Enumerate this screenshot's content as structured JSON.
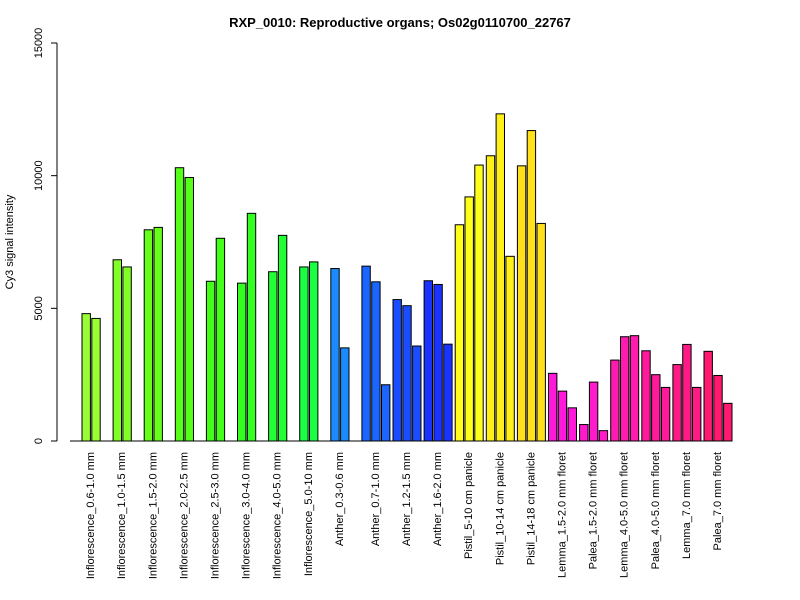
{
  "chart_data": {
    "type": "bar",
    "title": "RXP_0010: Reproductive organs; Os02g0110700_22767",
    "ylabel": "Cy3 signal intensity",
    "xlabel": "",
    "ylim": [
      0,
      15000
    ],
    "yticks": [
      0,
      5000,
      10000,
      15000
    ],
    "grid": false,
    "groups": [
      {
        "label": "Inflorescence_0.6-1.0 mm",
        "values": [
          4800,
          4620
        ],
        "colors": [
          "#99ff33",
          "#99ff33"
        ]
      },
      {
        "label": "Inflorescence_1.0-1.5 mm",
        "values": [
          6830,
          6560
        ],
        "colors": [
          "#80ff26",
          "#80ff26"
        ]
      },
      {
        "label": "Inflorescence_1.5-2.0 mm",
        "values": [
          7960,
          8050
        ],
        "colors": [
          "#66ff1a",
          "#66ff1a"
        ]
      },
      {
        "label": "Inflorescence_2.0-2.5 mm",
        "values": [
          10300,
          9930
        ],
        "colors": [
          "#55ff1a",
          "#55ff1a"
        ]
      },
      {
        "label": "Inflorescence_2.5-3.0 mm",
        "values": [
          6020,
          7640
        ],
        "colors": [
          "#44ff1a",
          "#44ff1a"
        ]
      },
      {
        "label": "Inflorescence_3.0-4.0 mm",
        "values": [
          5950,
          8580
        ],
        "colors": [
          "#33ff22",
          "#33ff22"
        ]
      },
      {
        "label": "Inflorescence_4.0-5.0 mm",
        "values": [
          6380,
          7750
        ],
        "colors": [
          "#22ff33",
          "#22ff33"
        ]
      },
      {
        "label": "Inflorescence_5.0-10 mm",
        "values": [
          6560,
          6750
        ],
        "colors": [
          "#1aff44",
          "#1aff44"
        ]
      },
      {
        "label": "Anther_0.3-0.6 mm",
        "values": [
          6500,
          3510
        ],
        "colors": [
          "#1a8cff",
          "#1a8cff"
        ]
      },
      {
        "label": "Anther_0.7-1.0 mm",
        "values": [
          6590,
          6000,
          2120
        ],
        "colors": [
          "#1a66ff",
          "#1a66ff",
          "#1a66ff"
        ]
      },
      {
        "label": "Anther_1.2-1.5 mm",
        "values": [
          5330,
          5100,
          3580
        ],
        "colors": [
          "#1a4dff",
          "#1a4dff",
          "#1a4dff"
        ]
      },
      {
        "label": "Anther_1.6-2.0 mm",
        "values": [
          6040,
          5900,
          3650
        ],
        "colors": [
          "#1a33ff",
          "#1a33ff",
          "#1a33ff"
        ]
      },
      {
        "label": "Pistil_5-10 cm panicle",
        "values": [
          8150,
          9200,
          10400
        ],
        "colors": [
          "#ffff1a",
          "#ffff1a",
          "#ffff1a"
        ]
      },
      {
        "label": "Pistil_10-14 cm panicle",
        "values": [
          10750,
          12330,
          6960
        ],
        "colors": [
          "#fff01a",
          "#fff01a",
          "#fff01a"
        ]
      },
      {
        "label": "Pistil_14-18 cm panicle",
        "values": [
          10370,
          11700,
          8200
        ],
        "colors": [
          "#ffe01a",
          "#ffe01a",
          "#ffe01a"
        ]
      },
      {
        "label": "Lemma_1.5-2.0 mm floret",
        "values": [
          2550,
          1880,
          1250
        ],
        "colors": [
          "#ff1adb",
          "#ff1adb",
          "#ff1adb"
        ]
      },
      {
        "label": "Palea_1.5-2.0 mm floret",
        "values": [
          620,
          2220,
          390
        ],
        "colors": [
          "#ff1acc",
          "#ff1acc",
          "#ff1acc"
        ]
      },
      {
        "label": "Lemma_4.0-5.0 mm floret",
        "values": [
          3050,
          3930,
          3970
        ],
        "colors": [
          "#ff1ab0",
          "#ff1ab0",
          "#ff1ab0"
        ]
      },
      {
        "label": "Palea_4.0-5.0 mm floret",
        "values": [
          3400,
          2500,
          2020
        ],
        "colors": [
          "#ff1a9c",
          "#ff1a9c",
          "#ff1a9c"
        ]
      },
      {
        "label": "Lemma_7.0 mm floret",
        "values": [
          2880,
          3640,
          2020
        ],
        "colors": [
          "#ff1a85",
          "#ff1a85",
          "#ff1a85"
        ]
      },
      {
        "label": "Palea_7.0 mm floret",
        "values": [
          3380,
          2470,
          1420
        ],
        "colors": [
          "#ff1a70",
          "#ff1a70",
          "#ff1a70"
        ]
      }
    ]
  }
}
